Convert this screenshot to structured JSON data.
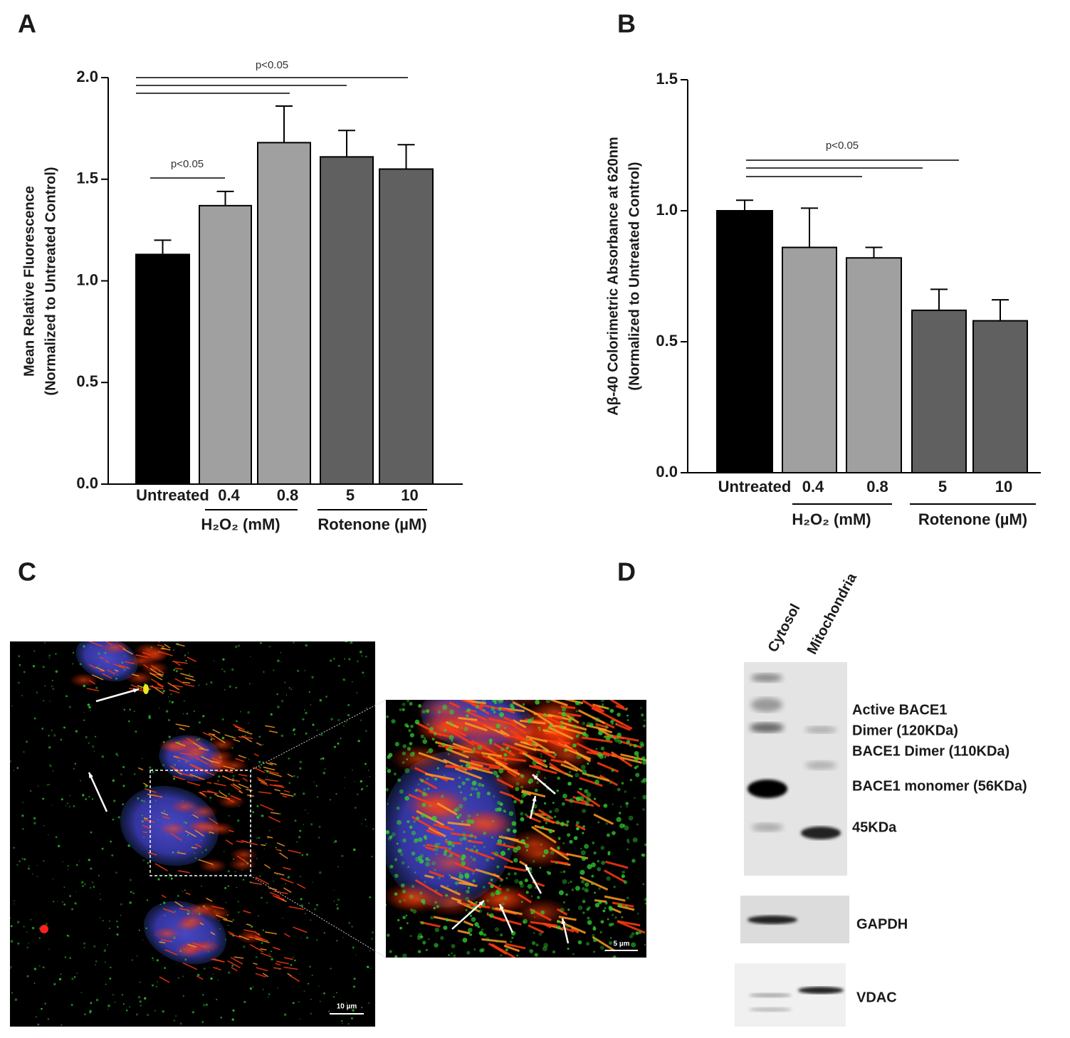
{
  "panel_labels": [
    "A",
    "B",
    "C",
    "D"
  ],
  "chart_data": [
    {
      "type": "bar",
      "ylabel": [
        "Mean Relative Fluorescence",
        "(Normalized to Untreated Control)"
      ],
      "categories": [
        "Untreated",
        "0.4",
        "0.8",
        "5",
        "10"
      ],
      "values": [
        1.13,
        1.37,
        1.68,
        1.61,
        1.55
      ],
      "errors": [
        0.07,
        0.07,
        0.18,
        0.13,
        0.12
      ],
      "colors": [
        "#000000",
        "#a0a0a0",
        "#a0a0a0",
        "#606060",
        "#606060"
      ],
      "groups": [
        "H₂O₂ (mM)",
        "Rotenone (µM)"
      ],
      "annotations": [
        "p<0.05",
        "p<0.05"
      ],
      "ylim": [
        0,
        2
      ],
      "yticks": [
        {
          "value": 0,
          "label": "0.0"
        },
        {
          "value": 0.5,
          "label": "0.5"
        },
        {
          "value": 1,
          "label": "1.0"
        },
        {
          "value": 1.5,
          "label": "1.5"
        },
        {
          "value": 2,
          "label": "2.0"
        }
      ]
    },
    {
      "type": "bar",
      "ylabel": [
        "Aβ-40  Colorimetric Absorbance at 620nm",
        "(Normalized to Untreated  Control)"
      ],
      "categories": [
        "Untreated",
        "0.4",
        "0.8",
        "5",
        "10"
      ],
      "values": [
        1.0,
        0.86,
        0.82,
        0.62,
        0.58
      ],
      "errors": [
        0.04,
        0.15,
        0.04,
        0.08,
        0.08
      ],
      "colors": [
        "#000000",
        "#a0a0a0",
        "#a0a0a0",
        "#606060",
        "#606060"
      ],
      "groups": [
        "H₂O₂ (mM)",
        "Rotenone (µM)"
      ],
      "annotations": [
        "p<0.05"
      ],
      "ylim": [
        0,
        1.5
      ],
      "yticks": [
        {
          "value": 0,
          "label": "0.0"
        },
        {
          "value": 0.5,
          "label": "0.5"
        },
        {
          "value": 1,
          "label": "1.0"
        },
        {
          "value": 1.5,
          "label": "1.5"
        }
      ]
    }
  ],
  "microscopy": {
    "scale_bars": [
      "10 µm",
      "5 µm"
    ]
  },
  "blot": {
    "lanes": [
      "Cytosol",
      "Mitochondria"
    ],
    "band_labels": [
      "Active BACE1",
      "Dimer (120KDa)",
      "BACE1 Dimer (110KDa)",
      "BACE1 monomer (56KDa)",
      "45KDa"
    ],
    "controls": [
      "GAPDH",
      "VDAC"
    ]
  }
}
